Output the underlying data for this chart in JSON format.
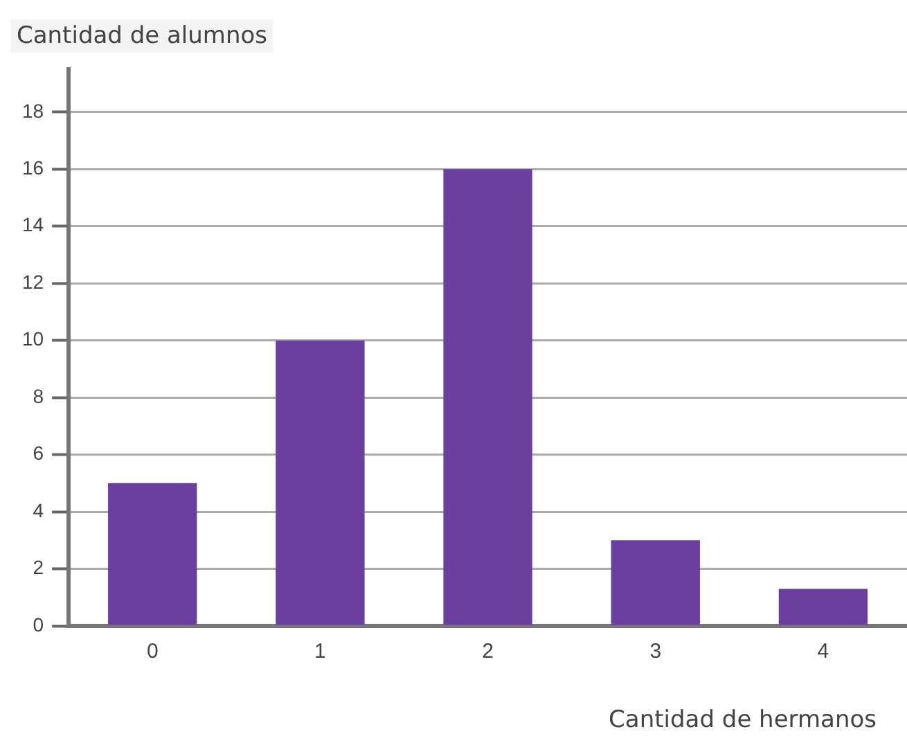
{
  "chart_data": {
    "type": "bar",
    "xlabel": "Cantidad de hermanos",
    "ylabel": "Cantidad de alumnos",
    "categories": [
      "0",
      "1",
      "2",
      "3",
      "4"
    ],
    "values": [
      5,
      10,
      16,
      3,
      1.3
    ],
    "color": "#6b3fa0",
    "ylim": [
      0,
      19.5
    ],
    "yticks": [
      0,
      2,
      4,
      6,
      8,
      10,
      12,
      14,
      16,
      18
    ],
    "grid": "y",
    "legend": false
  }
}
